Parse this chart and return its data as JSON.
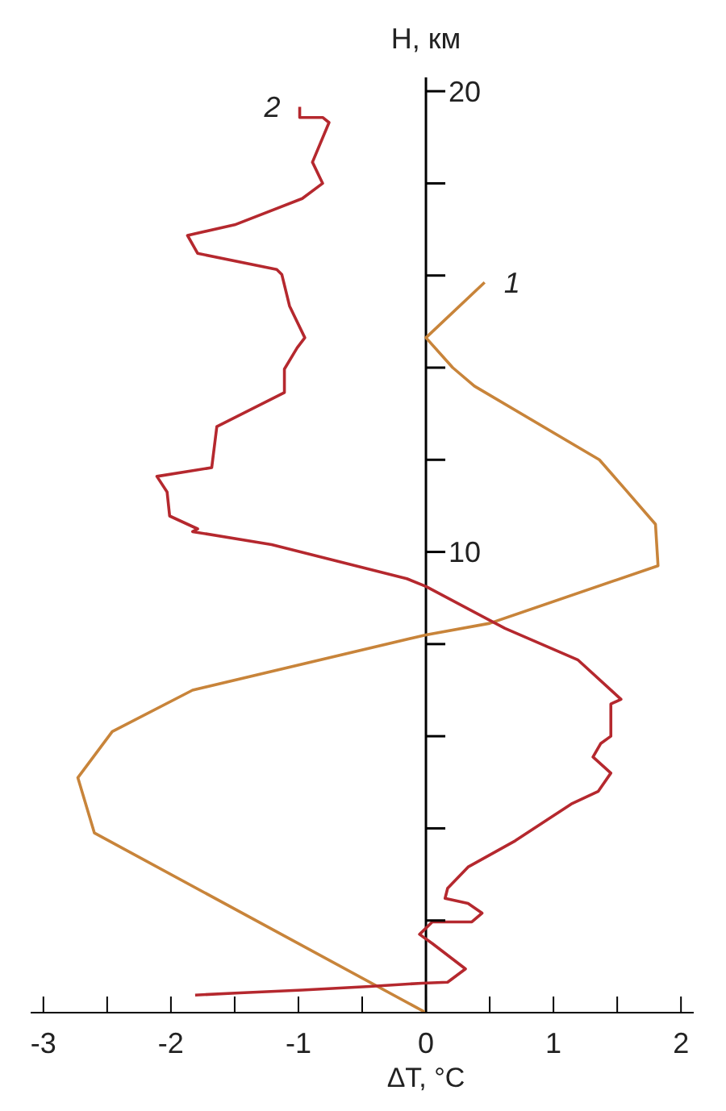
{
  "chart_data": {
    "type": "line",
    "xlabel": "ΔT, °C",
    "ylabel": "H, км",
    "xlim": [
      -3.1,
      2.1
    ],
    "ylim": [
      0,
      20.3
    ],
    "xticks": [
      -3,
      {
        "value": -2.5,
        "label": null
      },
      -2,
      {
        "value": -1.5,
        "label": null
      },
      -1,
      {
        "value": -0.5,
        "label": null
      },
      0,
      {
        "value": 0.5,
        "label": null
      },
      1,
      {
        "value": 1.5,
        "label": null
      },
      2
    ],
    "yticks": [
      {
        "value": 2,
        "label": null
      },
      {
        "value": 4,
        "label": null
      },
      {
        "value": 6,
        "label": null
      },
      {
        "value": 8,
        "label": null
      },
      10,
      {
        "value": 12,
        "label": null
      },
      {
        "value": 14,
        "label": null
      },
      {
        "value": 16,
        "label": null
      },
      {
        "value": 18,
        "label": null
      },
      20
    ],
    "marker": "none",
    "line_style": "solid",
    "series": [
      {
        "name": "1",
        "color": "#c8843a",
        "x": [
          0,
          -2.6,
          -2.73,
          -2.46,
          -1.83,
          0,
          0.5,
          1.82,
          1.8,
          1.55,
          1.36,
          0.38,
          0.21,
          0,
          0.46
        ],
        "values": [
          0,
          3.9,
          5.1,
          6.1,
          7.0,
          8.2,
          8.45,
          9.7,
          10.6,
          11.4,
          12.0,
          13.6,
          14.0,
          14.65,
          15.85
        ]
      },
      {
        "name": "2",
        "color": "#b5282e",
        "x": [
          -1.81,
          -1.46,
          -0.97,
          -0.44,
          -0.03,
          0.17,
          0.31,
          0.05,
          -0.05,
          0.05,
          0.36,
          0.44,
          0.33,
          0.15,
          0.17,
          0.33,
          0.7,
          1.14,
          1.35,
          1.45,
          1.31,
          1.37,
          1.45,
          1.45,
          1.53,
          1.19,
          0.62,
          0,
          -0.15,
          -1.21,
          -1.83,
          -1.79,
          -2.01,
          -2.03,
          -2.11,
          -1.68,
          -1.64,
          -1.11,
          -1.11,
          -1.01,
          -0.95,
          -1.07,
          -1.13,
          -1.17,
          -1.79,
          -1.87,
          -1.5,
          -0.97,
          -0.81,
          -0.89,
          -0.76,
          -0.81,
          -0.99,
          -0.99
        ],
        "values": [
          0.38,
          0.43,
          0.49,
          0.57,
          0.64,
          0.66,
          0.95,
          1.5,
          1.7,
          1.97,
          1.97,
          2.16,
          2.37,
          2.48,
          2.7,
          3.16,
          3.73,
          4.53,
          4.8,
          5.2,
          5.55,
          5.84,
          6.0,
          6.7,
          6.8,
          7.66,
          8.34,
          9.25,
          9.42,
          10.16,
          10.44,
          10.5,
          10.78,
          11.3,
          11.64,
          11.83,
          12.72,
          13.46,
          13.97,
          14.43,
          14.65,
          15.34,
          16.02,
          16.13,
          16.48,
          16.87,
          17.1,
          17.67,
          18.0,
          18.46,
          19.32,
          19.43,
          19.43,
          19.66
        ]
      }
    ]
  }
}
